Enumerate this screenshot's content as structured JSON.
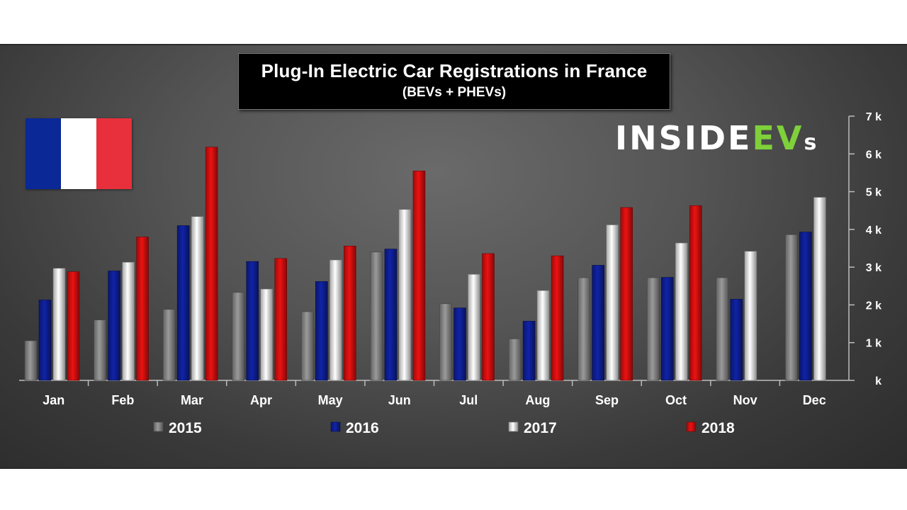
{
  "header": {
    "title": "Plug-In Electric Car Registrations in France",
    "subtitle": "(BEVs + PHEVs)"
  },
  "logo": {
    "part1": "INSIDE",
    "part2": "EV",
    "part3": "s",
    "accent_color": "#7fd13b"
  },
  "flag": {
    "colors": [
      "#0a2896",
      "#ffffff",
      "#e8303c"
    ]
  },
  "chart_data": {
    "type": "bar",
    "categories": [
      "Jan",
      "Feb",
      "Mar",
      "Apr",
      "May",
      "Jun",
      "Jul",
      "Aug",
      "Sep",
      "Oct",
      "Nov",
      "Dec"
    ],
    "series": [
      {
        "name": "2015",
        "color": "#9a9a9a",
        "values": [
          1050,
          1600,
          1880,
          2330,
          1820,
          3400,
          2030,
          1100,
          2720,
          2720,
          2720,
          3860
        ]
      },
      {
        "name": "2016",
        "color": "#1023a8",
        "values": [
          2130,
          2900,
          4100,
          3150,
          2620,
          3480,
          1920,
          1570,
          3050,
          2730,
          2150,
          3930
        ]
      },
      {
        "name": "2017",
        "color": "#ffffff",
        "values": [
          2970,
          3130,
          4340,
          2420,
          3190,
          4530,
          2810,
          2380,
          4120,
          3640,
          3420,
          4850
        ]
      },
      {
        "name": "2018",
        "color": "#ee1111",
        "values": [
          2880,
          3800,
          6180,
          3230,
          3560,
          5550,
          3360,
          3300,
          4580,
          4630,
          null,
          null
        ]
      }
    ],
    "ylim": [
      0,
      7000
    ],
    "yticks": [
      "k",
      "1 k",
      "2 k",
      "3 k",
      "4 k",
      "5 k",
      "6 k",
      "7 k"
    ],
    "ytick_values": [
      0,
      1000,
      2000,
      3000,
      4000,
      5000,
      6000,
      7000
    ],
    "xlabel": "",
    "ylabel": "",
    "legend_position": "bottom",
    "grid": false
  }
}
